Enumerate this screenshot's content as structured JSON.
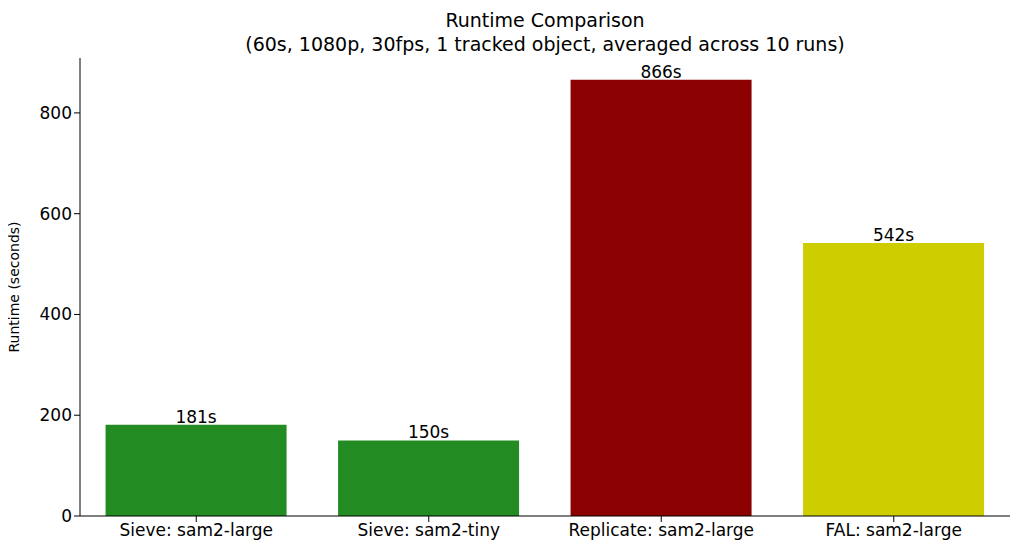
{
  "chart_data": {
    "type": "bar",
    "title": "Runtime Comparison",
    "subtitle": "(60s, 1080p, 30fps, 1 tracked object, averaged across 10 runs)",
    "y_label": "Runtime (seconds)",
    "categories": [
      "Sieve: sam2-large",
      "Sieve: sam2-tiny",
      "Replicate: sam2-large",
      "FAL: sam2-large"
    ],
    "values": [
      181,
      150,
      866,
      542
    ],
    "value_labels": [
      "181s",
      "150s",
      "866s",
      "542s"
    ],
    "colors": [
      "#228b22",
      "#228b22",
      "#8b0000",
      "#cdcd00"
    ],
    "ylim": [
      0,
      909
    ],
    "yticks": [
      0,
      200,
      400,
      600,
      800
    ],
    "grid": false,
    "data_labels": true
  }
}
